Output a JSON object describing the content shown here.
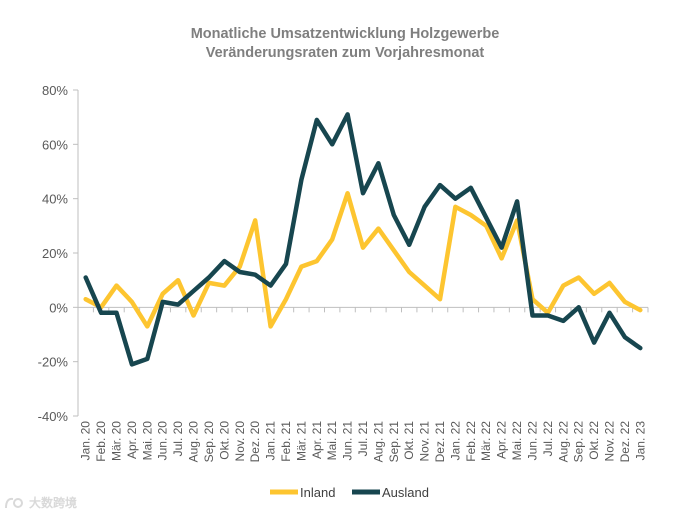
{
  "chart_data": {
    "type": "line",
    "title": "Monatliche Umsatzentwicklung Holzgewerbe",
    "subtitle": "Veränderungsraten zum Vorjahresmonat",
    "xlabel": "",
    "ylabel": "",
    "ylim": [
      -40,
      80
    ],
    "yticks": [
      -40,
      -20,
      0,
      20,
      40,
      60,
      80
    ],
    "ytick_labels": [
      "-40%",
      "-20%",
      "0%",
      "20%",
      "40%",
      "60%",
      "80%"
    ],
    "legend_position": "bottom-center",
    "categories": [
      "Jan. 20",
      "Feb. 20",
      "Mär. 20",
      "Apr. 20",
      "Mai. 20",
      "Jun. 20",
      "Jul. 20",
      "Aug. 20",
      "Sep. 20",
      "Okt. 20",
      "Nov. 20",
      "Dez. 20",
      "Jan. 21",
      "Feb. 21",
      "Mär. 21",
      "Apr. 21",
      "Mai. 21",
      "Jun. 21",
      "Jul. 21",
      "Aug. 21",
      "Sep. 21",
      "Okt. 21",
      "Nov. 21",
      "Dez. 21",
      "Jan. 22",
      "Feb. 22",
      "Mär. 22",
      "Apr. 22",
      "Mai. 22",
      "Jun. 22",
      "Jul. 22",
      "Aug. 22",
      "Sep. 22",
      "Okt. 22",
      "Nov. 22",
      "Dez. 22",
      "Jan. 23"
    ],
    "series": [
      {
        "name": "Inland",
        "color": "#fdc530",
        "values": [
          3,
          0,
          8,
          2,
          -7,
          5,
          10,
          -3,
          9,
          8,
          15,
          32,
          -7,
          3,
          15,
          17,
          25,
          42,
          22,
          29,
          21,
          13,
          8,
          3,
          37,
          34,
          30,
          18,
          32,
          3,
          -2,
          8,
          11,
          5,
          9,
          2,
          -1
        ]
      },
      {
        "name": "Ausland",
        "color": "#17464f",
        "values": [
          11,
          -2,
          -2,
          -21,
          -19,
          2,
          1,
          6,
          11,
          17,
          13,
          12,
          8,
          16,
          47,
          69,
          60,
          71,
          42,
          53,
          34,
          23,
          37,
          45,
          40,
          44,
          33,
          22,
          39,
          -3,
          -3,
          -5,
          0,
          -13,
          -2,
          -11,
          -15
        ]
      }
    ]
  },
  "watermark": {
    "text": "大数跨境",
    "icon": "brand-logo-icon"
  }
}
